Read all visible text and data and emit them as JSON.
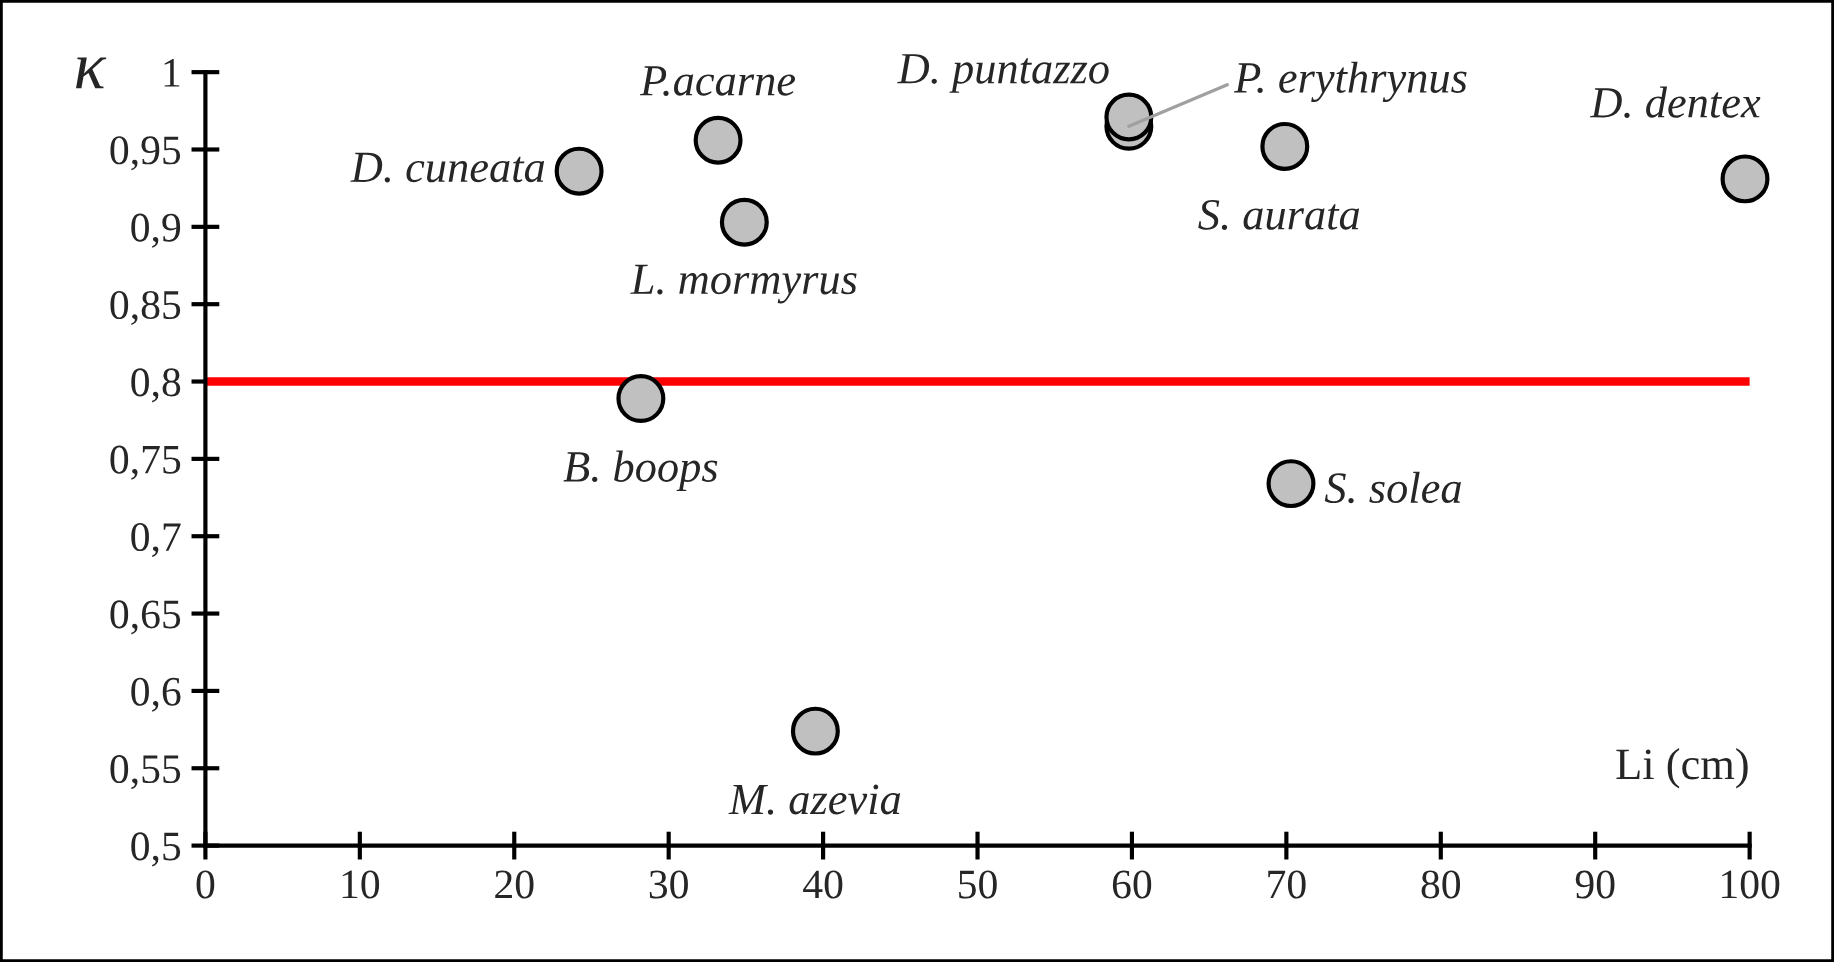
{
  "chart_data": {
    "type": "scatter",
    "xlabel": "Li (cm)",
    "ylabel": "κ",
    "x": [
      24.2,
      33.2,
      34.9,
      28.2,
      59.8,
      59.8,
      69.9,
      99.7,
      70.3,
      39.5
    ],
    "series": [
      {
        "color": "#c0c0c0",
        "values": [
          0.936,
          0.956,
          0.903,
          0.789,
          0.971,
          0.965,
          0.952,
          0.931,
          0.734,
          0.574
        ]
      }
    ],
    "annotations": [
      {
        "text": "D. cuneata",
        "x": 24.2,
        "y": 0.936
      },
      {
        "text": "P.acarne",
        "x": 33.2,
        "y": 0.956
      },
      {
        "text": "L. mormyrus",
        "x": 34.9,
        "y": 0.903
      },
      {
        "text": "B. boops",
        "x": 28.2,
        "y": 0.789
      },
      {
        "text": "D. puntazzo",
        "x": 59.8,
        "y": 0.971
      },
      {
        "text": "P. erythrynus",
        "x": 59.8,
        "y": 0.965
      },
      {
        "text": "S. aurata",
        "x": 69.9,
        "y": 0.952
      },
      {
        "text": "D. dentex",
        "x": 99.7,
        "y": 0.931
      },
      {
        "text": "S. solea",
        "x": 70.3,
        "y": 0.734
      },
      {
        "text": "M. azevia",
        "x": 39.5,
        "y": 0.574
      }
    ],
    "ref_lines": [
      {
        "axis": "y",
        "value": 0.8,
        "color": "#ff0000"
      }
    ],
    "xlim": [
      0,
      100
    ],
    "xticks": [
      0,
      10,
      20,
      30,
      40,
      50,
      60,
      70,
      80,
      90,
      100
    ],
    "ylim": [
      0.5,
      1
    ],
    "yticks": [
      {
        "value": 0.5,
        "label": "0,5"
      },
      {
        "value": 0.55,
        "label": "0,55"
      },
      {
        "value": 0.6,
        "label": "0,6"
      },
      {
        "value": 0.65,
        "label": "0,65"
      },
      {
        "value": 0.7,
        "label": "0,7"
      },
      {
        "value": 0.75,
        "label": "0,75"
      },
      {
        "value": 0.8,
        "label": "0,8"
      },
      {
        "value": 0.85,
        "label": "0,85"
      },
      {
        "value": 0.9,
        "label": "0,9"
      },
      {
        "value": 0.95,
        "label": "0,95"
      },
      {
        "value": 1,
        "label": "1"
      }
    ],
    "grid": false,
    "legend": false,
    "marker": "circle"
  }
}
